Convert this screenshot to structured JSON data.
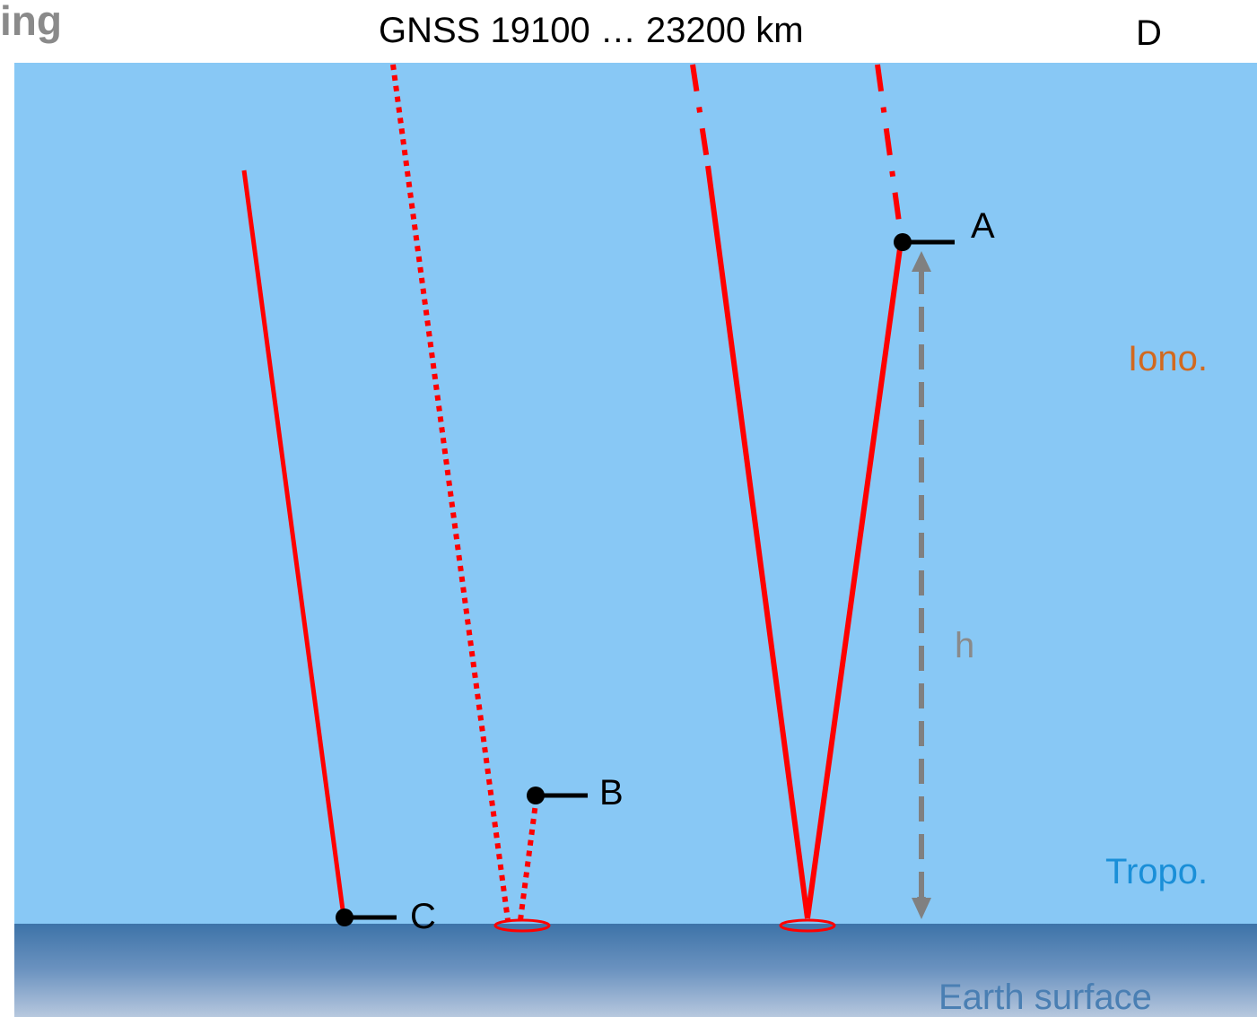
{
  "title_fragment": "ing",
  "gnss_label": "GNSS 19100 … 23200 km",
  "point_labels": {
    "a": "A",
    "b": "B",
    "c": "C",
    "d": "D"
  },
  "height_label": "h",
  "layers": {
    "ionosphere": "Iono.",
    "troposphere": "Tropo.",
    "earth": "Earth surface"
  },
  "colors": {
    "signal": "#ff0000",
    "ionosphere": "#ffd21a",
    "troposphere": "#88c8f5",
    "earth": "#3d73a8",
    "height_arrow": "#808080"
  }
}
